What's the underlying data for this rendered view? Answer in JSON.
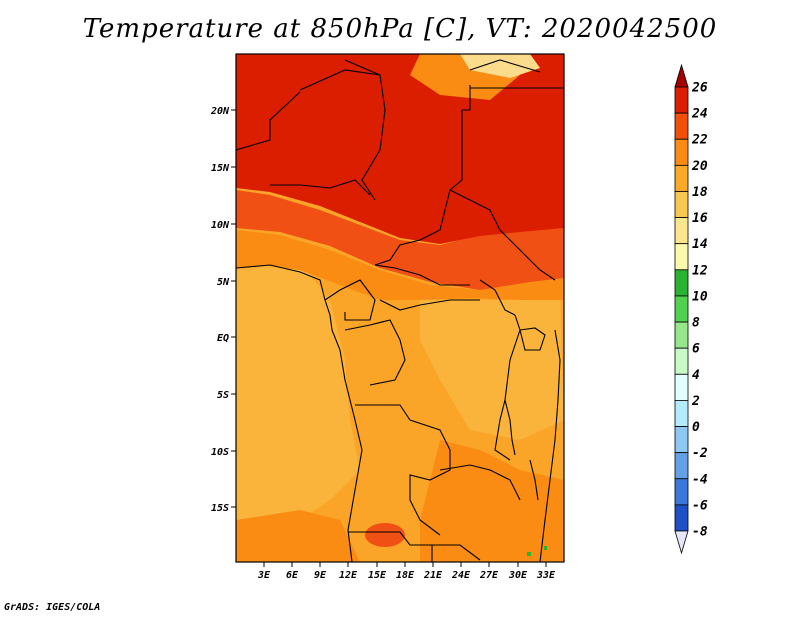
{
  "title": "Temperature at 850hPa [C], VT: 2020042500",
  "credit": "GrADS: IGES/COLA",
  "map": {
    "lat_ticks": [
      "20N",
      "15N",
      "10N",
      "5N",
      "EQ",
      "5S",
      "10S",
      "15S"
    ],
    "lon_ticks": [
      "3E",
      "6E",
      "9E",
      "12E",
      "15E",
      "18E",
      "21E",
      "24E",
      "27E",
      "30E",
      "33E"
    ]
  },
  "colorbar": {
    "labels": [
      "26",
      "24",
      "22",
      "20",
      "18",
      "16",
      "14",
      "12",
      "10",
      "8",
      "6",
      "4",
      "2",
      "0",
      "-2",
      "-4",
      "-6",
      "-8"
    ],
    "colors": [
      "#a50000",
      "#dc1e00",
      "#f0500a",
      "#fa8c14",
      "#faaa28",
      "#fac850",
      "#fae68c",
      "#fafaaa",
      "#28b432",
      "#50d250",
      "#96e68c",
      "#c8fac8",
      "#e1ffff",
      "#b4ebfa",
      "#8cc8f0",
      "#64a0e6",
      "#3c78dc",
      "#1e50c8",
      "#0a32a0",
      "#000078",
      "#e6e6fa"
    ]
  },
  "colors": {
    "deep_red": "#dc1e00",
    "red": "#f05014",
    "orange": "#fa8c14",
    "amber": "#faa528",
    "light_orange": "#fab43c",
    "yellow": "#fadc8c",
    "green": "#28b432"
  }
}
